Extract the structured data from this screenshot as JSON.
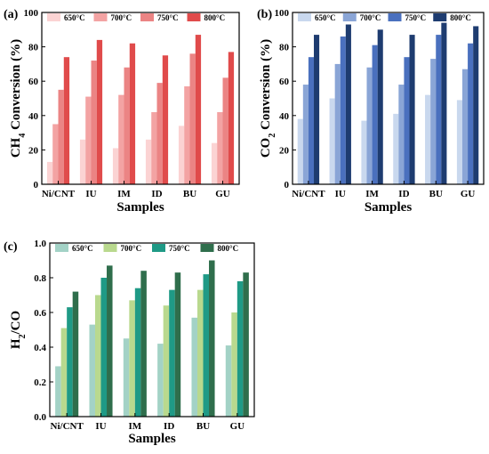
{
  "chart_data": [
    {
      "type": "bar",
      "panel_label": "(a)",
      "categories": [
        "Ni/CNT",
        "IU",
        "IM",
        "ID",
        "BU",
        "GU"
      ],
      "series": [
        {
          "name": "650°C",
          "color": "#fbd3d3",
          "values": [
            13,
            26,
            21,
            26,
            34,
            24
          ]
        },
        {
          "name": "700°C",
          "color": "#f3a3a3",
          "values": [
            35,
            51,
            52,
            42,
            57,
            42
          ]
        },
        {
          "name": "750°C",
          "color": "#eb8484",
          "values": [
            55,
            72,
            68,
            59,
            76,
            62
          ]
        },
        {
          "name": "800°C",
          "color": "#e04b4b",
          "values": [
            74,
            84,
            82,
            75,
            87,
            77
          ]
        }
      ],
      "xlabel": "Samples",
      "ylabel_main": "CH",
      "ylabel_sub": "4",
      "ylabel_rest": " Conversion (%)",
      "ylim": [
        0,
        100
      ],
      "yticks": [
        "0",
        "20",
        "40",
        "60",
        "80",
        "100"
      ],
      "legend": "top-inside"
    },
    {
      "type": "bar",
      "panel_label": "(b)",
      "categories": [
        "Ni/CNT",
        "IU",
        "IM",
        "ID",
        "BU",
        "GU"
      ],
      "series": [
        {
          "name": "650°C",
          "color": "#c9d8ee",
          "values": [
            38,
            50,
            37,
            41,
            52,
            49
          ]
        },
        {
          "name": "700°C",
          "color": "#8aa5d6",
          "values": [
            58,
            70,
            68,
            58,
            73,
            67
          ]
        },
        {
          "name": "750°C",
          "color": "#4a70be",
          "values": [
            74,
            86,
            81,
            74,
            87,
            82
          ]
        },
        {
          "name": "800°C",
          "color": "#1e3c70",
          "values": [
            87,
            93,
            90,
            87,
            94,
            92
          ]
        }
      ],
      "xlabel": "Samples",
      "ylabel_main": "CO",
      "ylabel_sub": "2",
      "ylabel_rest": " Conversion (%)",
      "ylim": [
        0,
        100
      ],
      "yticks": [
        "0",
        "20",
        "40",
        "60",
        "80",
        "100"
      ],
      "legend": "top-inside"
    },
    {
      "type": "bar",
      "panel_label": "(c)",
      "categories": [
        "Ni/CNT",
        "IU",
        "IM",
        "ID",
        "BU",
        "GU"
      ],
      "series": [
        {
          "name": "650°C",
          "color": "#a3d2c6",
          "values": [
            0.29,
            0.53,
            0.45,
            0.42,
            0.57,
            0.41
          ]
        },
        {
          "name": "700°C",
          "color": "#b9d98e",
          "values": [
            0.51,
            0.7,
            0.67,
            0.64,
            0.73,
            0.6
          ]
        },
        {
          "name": "750°C",
          "color": "#1f9a86",
          "values": [
            0.63,
            0.8,
            0.74,
            0.73,
            0.82,
            0.78
          ]
        },
        {
          "name": "800°C",
          "color": "#2f6e4c",
          "values": [
            0.72,
            0.87,
            0.84,
            0.83,
            0.9,
            0.83
          ]
        }
      ],
      "xlabel": "Samples",
      "ylabel_main": "H",
      "ylabel_sub": "2",
      "ylabel_rest": "/CO",
      "ylim": [
        0,
        1.0
      ],
      "yticks": [
        "0.0",
        "0.2",
        "0.4",
        "0.6",
        "0.8",
        "1.0"
      ],
      "legend": "top-inside"
    }
  ]
}
